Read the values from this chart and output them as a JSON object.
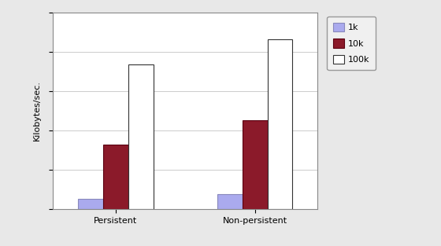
{
  "categories": [
    "Persistent",
    "Non-persistent"
  ],
  "series": [
    {
      "label": "1k",
      "values": [
        48,
        72
      ],
      "color": "#aaaaee",
      "edgecolor": "#8888bb"
    },
    {
      "label": "10k",
      "values": [
        310,
        430
      ],
      "color": "#8b1a2a",
      "edgecolor": "#5a0010"
    },
    {
      "label": "100k",
      "values": [
        700,
        820
      ],
      "color": "#ffffff",
      "edgecolor": "#333333"
    }
  ],
  "ylabel": "Kilobytes/sec.",
  "ylim": [
    0,
    950
  ],
  "figure_bg": "#e8e8e8",
  "plot_bg": "#ffffff",
  "legend_fontsize": 8,
  "ylabel_fontsize": 8,
  "tick_fontsize": 8,
  "bar_width": 0.18,
  "grid_color": "#cccccc",
  "grid_linewidth": 0.7,
  "spine_color": "#888888"
}
